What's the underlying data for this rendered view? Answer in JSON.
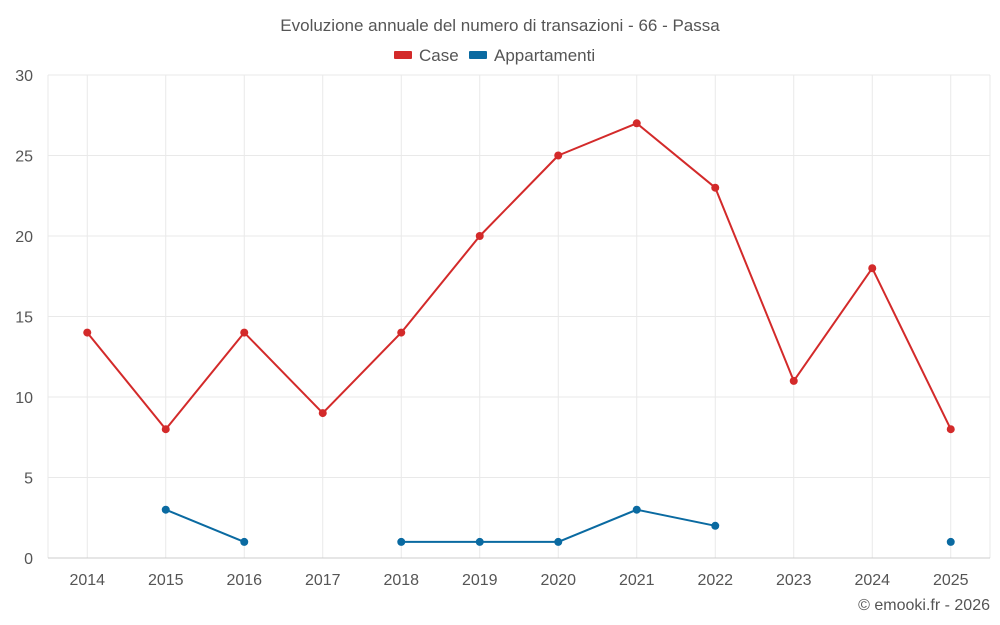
{
  "chart_data": {
    "type": "line",
    "title": "Evoluzione annuale del numero di transazioni - 66 - Passa",
    "categories": [
      "2014",
      "2015",
      "2016",
      "2017",
      "2018",
      "2019",
      "2020",
      "2021",
      "2022",
      "2023",
      "2024",
      "2025"
    ],
    "series": [
      {
        "name": "Case",
        "color": "#d32a2a",
        "values": [
          14,
          8,
          14,
          9,
          14,
          20,
          25,
          27,
          23,
          11,
          18,
          8
        ]
      },
      {
        "name": "Appartamenti",
        "color": "#0a6aa1",
        "values": [
          null,
          3,
          1,
          null,
          1,
          1,
          1,
          3,
          2,
          null,
          null,
          1
        ]
      }
    ],
    "ylim": [
      0,
      30
    ],
    "yticks": [
      0,
      5,
      10,
      15,
      20,
      25,
      30
    ],
    "grid": true,
    "legend_position": "top-center",
    "xlabel": "",
    "ylabel": ""
  },
  "credit": "© emooki.fr - 2026"
}
